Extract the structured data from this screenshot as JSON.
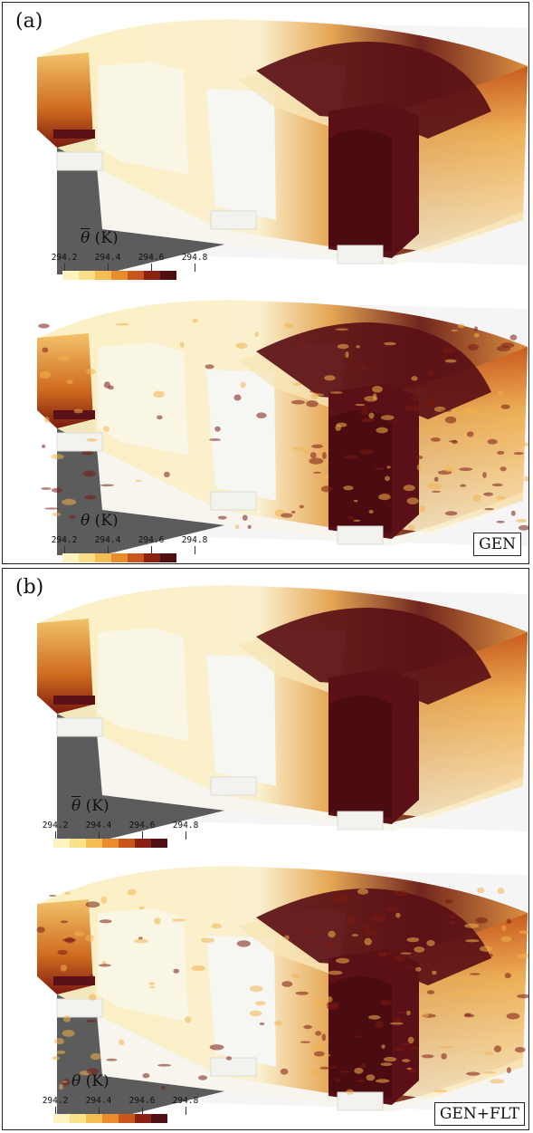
{
  "panels": [
    {
      "label": "(a)",
      "case": "GEN",
      "top_colorbar": {
        "symbol": "θ",
        "unit": "(K)",
        "overline": true,
        "ticks": [
          "294.2",
          "294.4",
          "294.6",
          "294.8"
        ]
      },
      "bottom_colorbar": {
        "symbol": "θ",
        "unit": "(K)",
        "overline": false,
        "ticks": [
          "294.2",
          "294.4",
          "294.6",
          "294.8"
        ]
      }
    },
    {
      "label": "(b)",
      "case": "GEN+FLT",
      "top_colorbar": {
        "symbol": "θ",
        "unit": "(K)",
        "overline": true,
        "ticks": [
          "294.2",
          "294.4",
          "294.6",
          "294.8"
        ]
      },
      "bottom_colorbar": {
        "symbol": "θ",
        "unit": "(K)",
        "overline": false,
        "ticks": [
          "294.2",
          "294.4",
          "294.6",
          "294.8"
        ]
      }
    }
  ],
  "colormap": [
    "#fdf3c0",
    "#fbe08a",
    "#f5bd54",
    "#e98c2c",
    "#c9561a",
    "#8a2212",
    "#4f0e12"
  ],
  "colors": {
    "floor": "#4a4a4a",
    "hot": "#5a1016",
    "warm": "#d8741e",
    "cool": "#fbf1c8",
    "ice": "#f6f6f2"
  }
}
